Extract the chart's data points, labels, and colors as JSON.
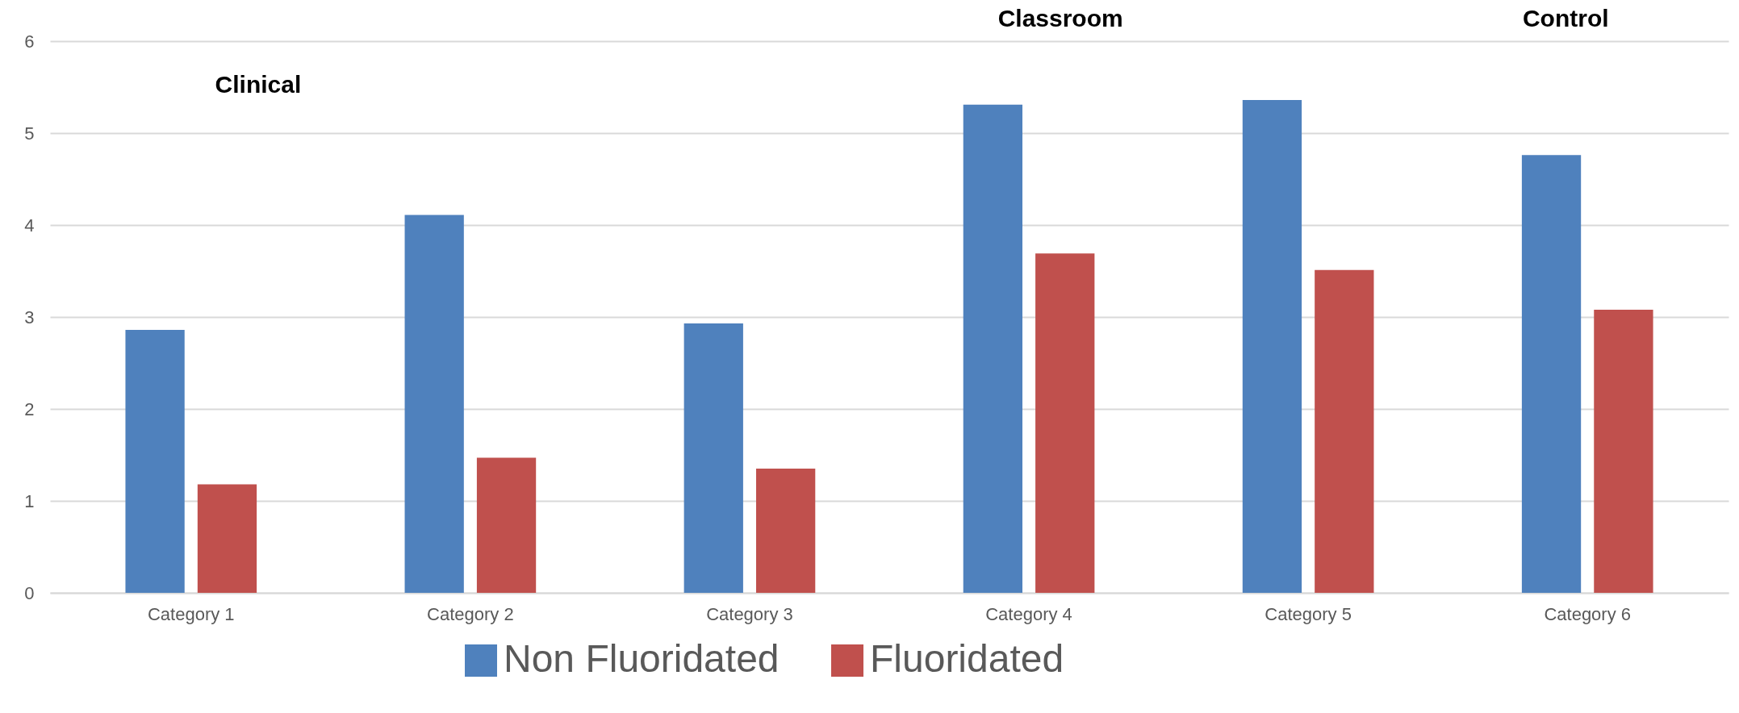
{
  "chart_data": {
    "type": "bar",
    "categories": [
      "Category 1",
      "Category 2",
      "Category 3",
      "Category 4",
      "Category 5",
      "Category 6"
    ],
    "series": [
      {
        "name": "Non Fluoridated",
        "color": "#4f81bd",
        "values": [
          2.86,
          4.11,
          2.93,
          5.31,
          5.36,
          4.76
        ]
      },
      {
        "name": "Fluoridated",
        "color": "#c0504d",
        "values": [
          1.18,
          1.47,
          1.35,
          3.69,
          3.51,
          3.08
        ]
      }
    ],
    "ylim": [
      0,
      6
    ],
    "yticks": [
      0,
      1,
      2,
      3,
      4,
      5,
      6
    ],
    "grid": "y",
    "legend": "bottom",
    "annotations": [
      "Clinical",
      "Classroom",
      "Control"
    ]
  }
}
